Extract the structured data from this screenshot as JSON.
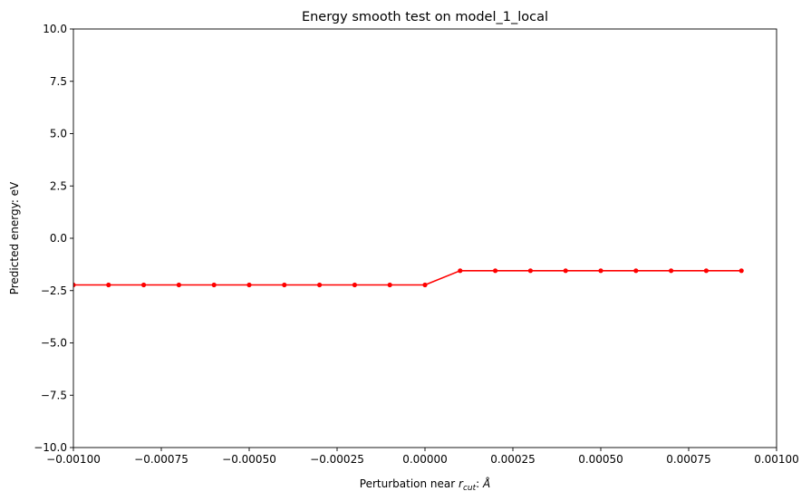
{
  "chart_data": {
    "type": "line",
    "title": "Energy smooth test on model_1_local",
    "xlabel": {
      "prefix": "Perturbation near ",
      "symbol": "r",
      "subscript": "cut",
      "suffix": ": ",
      "unit": "Å"
    },
    "ylabel": "Predicted energy: eV",
    "xlim": [
      -0.001,
      0.001
    ],
    "ylim": [
      -10,
      10
    ],
    "xticks": [
      -0.001,
      -0.00075,
      -0.0005,
      -0.00025,
      0.0,
      0.00025,
      0.0005,
      0.00075,
      0.001
    ],
    "xtick_labels": [
      "−0.00100",
      "−0.00075",
      "−0.00050",
      "−0.00025",
      "0.00000",
      "0.00025",
      "0.00050",
      "0.00075",
      "0.00100"
    ],
    "yticks": [
      10,
      7.5,
      5,
      2.5,
      0,
      -2.5,
      -5,
      -7.5,
      -10
    ],
    "ytick_labels": [
      "10.0",
      "7.5",
      "5.0",
      "2.5",
      "0.0",
      "−2.5",
      "−5.0",
      "−7.5",
      "−10.0"
    ],
    "grid": false,
    "series": [
      {
        "color": "#ff0000",
        "marker": "circle",
        "x": [
          -0.001,
          -0.0009,
          -0.0008,
          -0.0007,
          -0.0006,
          -0.0005,
          -0.0004,
          -0.0003,
          -0.0002,
          -0.0001,
          0.0,
          0.0001,
          0.0002,
          0.0003,
          0.0004,
          0.0005,
          0.0006,
          0.0007,
          0.0008,
          0.0009
        ],
        "y": [
          -2.23,
          -2.23,
          -2.23,
          -2.23,
          -2.23,
          -2.23,
          -2.23,
          -2.23,
          -2.23,
          -2.23,
          -2.23,
          -1.55,
          -1.55,
          -1.55,
          -1.55,
          -1.55,
          -1.55,
          -1.55,
          -1.55,
          -1.55
        ]
      }
    ]
  }
}
